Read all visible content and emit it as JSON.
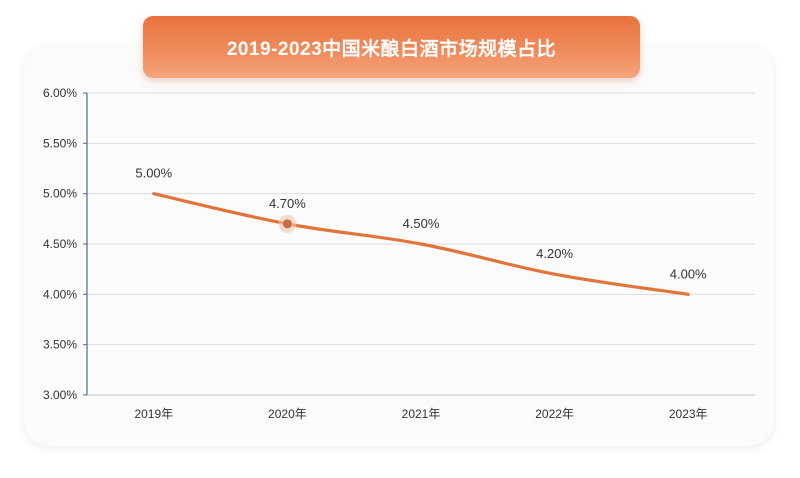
{
  "chart_data": {
    "type": "line",
    "title": "2019-2023中国米酿白酒市场规模占比",
    "categories": [
      "2019年",
      "2020年",
      "2021年",
      "2022年",
      "2023年"
    ],
    "series": [
      {
        "name": "市场规模占比",
        "values": [
          5.0,
          4.7,
          4.5,
          4.2,
          4.0
        ],
        "color": "#e2733a"
      }
    ],
    "data_labels": [
      "5.00%",
      "4.70%",
      "4.50%",
      "4.20%",
      "4.00%"
    ],
    "yticks": [
      3.0,
      3.5,
      4.0,
      4.5,
      5.0,
      5.5,
      6.0
    ],
    "ytick_labels": [
      "3.00%",
      "3.50%",
      "4.00%",
      "4.50%",
      "5.00%",
      "5.50%",
      "6.00%"
    ],
    "ylim": [
      3.0,
      6.0
    ],
    "xlabel": "",
    "ylabel": "",
    "grid": true,
    "legend": "none",
    "highlighted_category": "2020年"
  },
  "colors": {
    "line": "#e2733a",
    "grid": "#d9dde6",
    "axis": "#4a6a8a",
    "marker": "#c96b4a"
  }
}
